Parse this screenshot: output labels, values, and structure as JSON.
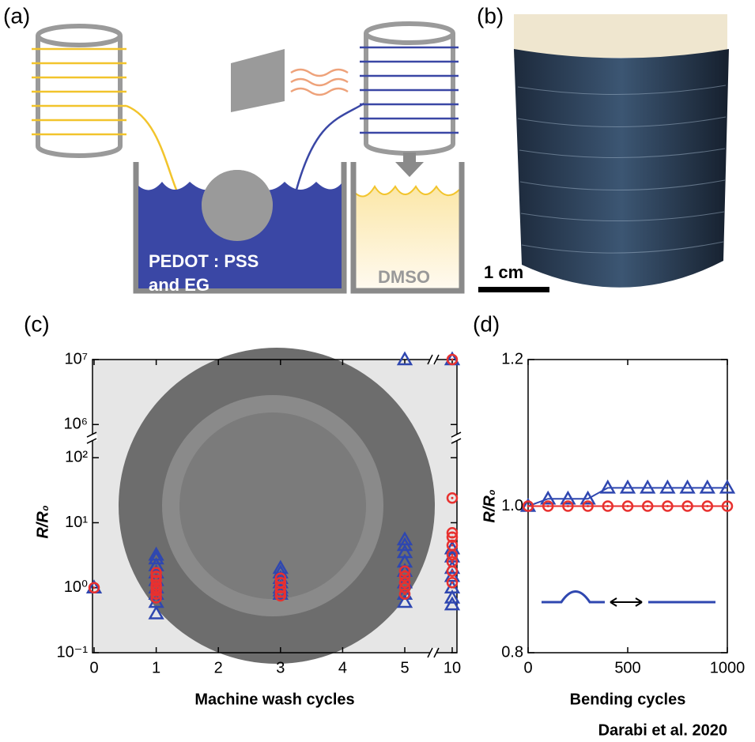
{
  "panels": {
    "a": "(a)",
    "b": "(b)"
  },
  "schematic": {
    "bath_line1": "PEDOT : PSS",
    "bath_line2": "and EG",
    "dmso": "DMSO"
  },
  "photo": {
    "scale_bar": "1 cm"
  },
  "credit": "Darabi et al. 2020",
  "chart_data": [
    {
      "type": "scatter",
      "label": "(c)",
      "x_label": "Machine wash cycles",
      "y_label": "R/R₀",
      "log_y": true,
      "xlim": [
        0,
        10
      ],
      "xbreak": [
        5,
        10
      ],
      "ylim": [
        0.1,
        10000000
      ],
      "ybreak": [
        100,
        1000000
      ],
      "xticks": [
        0,
        1,
        2,
        3,
        4,
        5,
        10
      ],
      "yticks": [
        {
          "value": 0.1,
          "label": "10⁻¹"
        },
        {
          "value": 1,
          "label": "10⁰"
        },
        {
          "value": 10,
          "label": "10¹"
        },
        {
          "value": 100,
          "label": "10²"
        },
        {
          "value": 1000000,
          "label": "10⁶"
        },
        {
          "value": 10000000,
          "label": "10⁷"
        }
      ],
      "series": [
        {
          "marker": "triangle",
          "color": "#2f47b0",
          "x": [
            0,
            1,
            1,
            1,
            1,
            1,
            1,
            1,
            1,
            1,
            3,
            3,
            3,
            3,
            3,
            3,
            3,
            5,
            5,
            5,
            5,
            5,
            5,
            5,
            5,
            5,
            10,
            10,
            10,
            10,
            10,
            10,
            10,
            10
          ],
          "values": [
            1,
            0.4,
            0.6,
            0.8,
            1,
            1.3,
            1.7,
            2.2,
            2.8,
            3.2,
            0.8,
            0.9,
            1,
            1.2,
            1.4,
            1.7,
            2,
            0.6,
            0.8,
            1.2,
            1.8,
            2.5,
            3.5,
            4.5,
            5.5,
            10000000,
            0.55,
            0.7,
            1,
            1.5,
            2,
            3,
            4,
            10000000
          ]
        },
        {
          "marker": "circle",
          "color": "#e8312f",
          "x": [
            0,
            1,
            1,
            1,
            1,
            1,
            1,
            1,
            1,
            3,
            3,
            3,
            3,
            3,
            5,
            5,
            5,
            5,
            5,
            10,
            10,
            10,
            10,
            10,
            10,
            10,
            10,
            10
          ],
          "values": [
            1,
            0.7,
            0.8,
            0.9,
            1,
            1.1,
            1.3,
            1.5,
            1.7,
            0.75,
            0.85,
            1,
            1.2,
            1.4,
            0.8,
            1,
            1.2,
            1.5,
            1.8,
            1.2,
            1.8,
            2.5,
            3.2,
            4.5,
            6,
            7,
            24,
            10000000
          ]
        }
      ]
    },
    {
      "type": "line",
      "label": "(d)",
      "x_label": "Bending cycles",
      "y_label": "R/R₀",
      "xlim": [
        0,
        1000
      ],
      "ylim": [
        0.8,
        1.2
      ],
      "xticks": [
        0,
        500,
        1000
      ],
      "yticks": [
        0.8,
        {
          "value": 1,
          "label": "1.0"
        },
        1.2
      ],
      "series": [
        {
          "marker": "triangle",
          "color": "#2f47b0",
          "x": [
            0,
            100,
            200,
            300,
            400,
            500,
            600,
            700,
            800,
            900,
            1000
          ],
          "values": [
            1,
            1.01,
            1.01,
            1.01,
            1.025,
            1.025,
            1.025,
            1.025,
            1.025,
            1.025,
            1.025
          ]
        },
        {
          "marker": "circle",
          "color": "#e8312f",
          "x": [
            0,
            100,
            200,
            300,
            400,
            500,
            600,
            700,
            800,
            900,
            1000
          ],
          "values": [
            1,
            1,
            1,
            1,
            1,
            1,
            1,
            1,
            1,
            1,
            1
          ]
        }
      ]
    }
  ]
}
